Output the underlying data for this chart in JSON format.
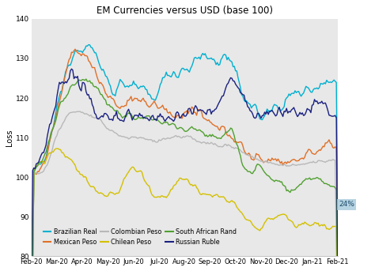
{
  "title": "EM Currencies versus USD (base 100)",
  "ylabel": "Loss",
  "ylim": [
    80,
    140
  ],
  "yticks": [
    80,
    90,
    100,
    110,
    120,
    130,
    140
  ],
  "xlabels": [
    "Feb-20",
    "Mar-20",
    "Apr-20",
    "May-20",
    "Jun-20",
    "Jul-20",
    "Aug-20",
    "Sep-20",
    "Oct-20",
    "Nov-20",
    "Dec-20",
    "Jan-21",
    "Feb-21"
  ],
  "bg_color": "#e8e8e8",
  "fig_color": "#ffffff",
  "annotation_text": "24%",
  "annotation_bg": "#aaccdd",
  "annotation_text_color": "#1a4a6a",
  "colors": {
    "Brazilian Real": "#00b0d0",
    "Mexican Peso": "#e07028",
    "Colombian Peso": "#b8b8b8",
    "Chilean Peso": "#d4c000",
    "South African Rand": "#50a030",
    "Russian Ruble": "#1a2080"
  }
}
